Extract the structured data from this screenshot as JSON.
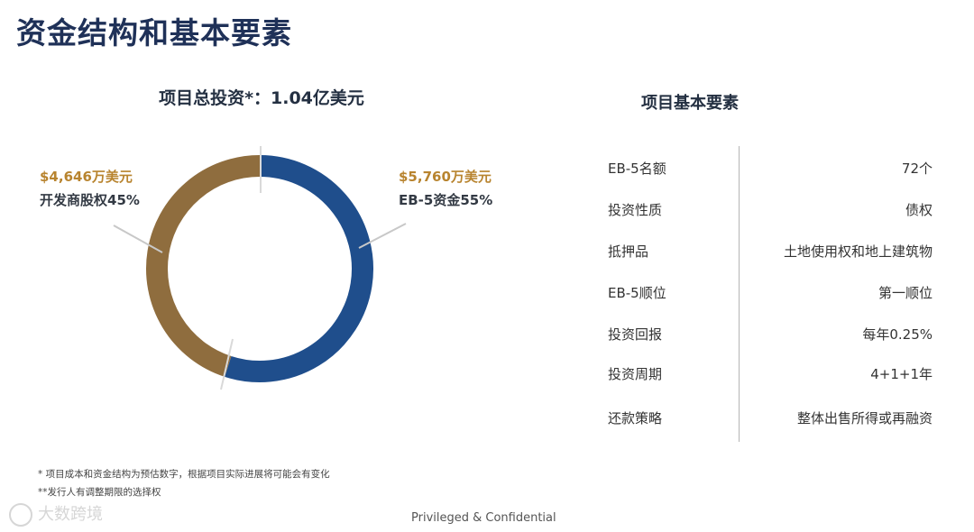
{
  "page": {
    "title": "资金结构和基本要素",
    "footer": "Privileged & Confidential",
    "watermark": "大数跨境",
    "notes": [
      "* 项目成本和资金结构为预估数字，根据项目实际进展将可能会有变化",
      "**发行人有调整期限的选择权"
    ]
  },
  "chart_data": {
    "type": "pie",
    "title": "项目总投资*：1.04亿美元",
    "slices": [
      {
        "label": "EB-5资金55%",
        "amount": "$5,760万美元",
        "value": 55,
        "color": "#1f4e8c"
      },
      {
        "label": "开发商股权45%",
        "amount": "$4,646万美元",
        "value": 45,
        "color": "#8f6d3e"
      }
    ]
  },
  "table": {
    "title": "项目基本要素",
    "rows": [
      {
        "key": "EB-5名额",
        "value": "72个"
      },
      {
        "key": "投资性质",
        "value": "债权"
      },
      {
        "key": "抵押品",
        "value": "土地使用权和地上建筑物"
      },
      {
        "key": "EB-5顺位",
        "value": "第一顺位"
      },
      {
        "key": "投资回报",
        "value": "每年0.25%"
      },
      {
        "key": "投资周期",
        "value": "4+1+1年"
      },
      {
        "key": "还款策略",
        "value": "整体出售所得或再融资"
      }
    ]
  }
}
